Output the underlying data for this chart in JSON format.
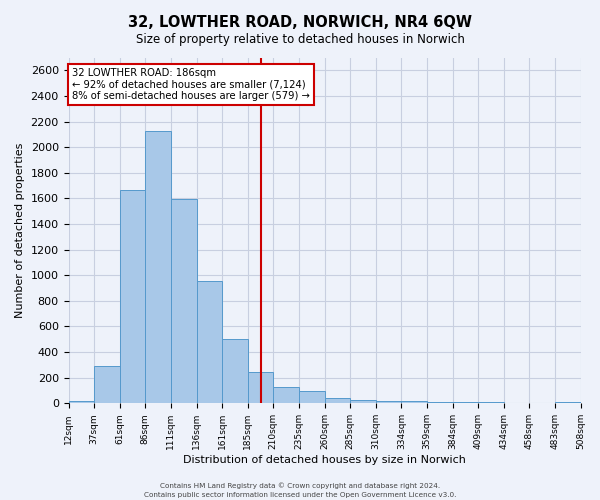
{
  "title": "32, LOWTHER ROAD, NORWICH, NR4 6QW",
  "subtitle": "Size of property relative to detached houses in Norwich",
  "xlabel": "Distribution of detached houses by size in Norwich",
  "ylabel": "Number of detached properties",
  "bin_labels": [
    "12sqm",
    "37sqm",
    "61sqm",
    "86sqm",
    "111sqm",
    "136sqm",
    "161sqm",
    "185sqm",
    "210sqm",
    "235sqm",
    "260sqm",
    "285sqm",
    "310sqm",
    "334sqm",
    "359sqm",
    "384sqm",
    "409sqm",
    "434sqm",
    "458sqm",
    "483sqm",
    "508sqm"
  ],
  "bar_values": [
    20,
    295,
    1665,
    2130,
    1595,
    955,
    505,
    245,
    125,
    95,
    45,
    27,
    15,
    18,
    8,
    13,
    8,
    5,
    2,
    13
  ],
  "bar_color": "#a8c8e8",
  "bar_edge_color": "#5599cc",
  "vline_color": "#cc0000",
  "vline_x": 7.5,
  "annotation_title": "32 LOWTHER ROAD: 186sqm",
  "annotation_line1": "← 92% of detached houses are smaller (7,124)",
  "annotation_line2": "8% of semi-detached houses are larger (579) →",
  "annotation_box_color": "#cc0000",
  "footer_line1": "Contains HM Land Registry data © Crown copyright and database right 2024.",
  "footer_line2": "Contains public sector information licensed under the Open Government Licence v3.0.",
  "background_color": "#eef2fa",
  "grid_color": "#c8cfe0",
  "ylim": [
    0,
    2700
  ],
  "yticks": [
    0,
    200,
    400,
    600,
    800,
    1000,
    1200,
    1400,
    1600,
    1800,
    2000,
    2200,
    2400,
    2600
  ]
}
